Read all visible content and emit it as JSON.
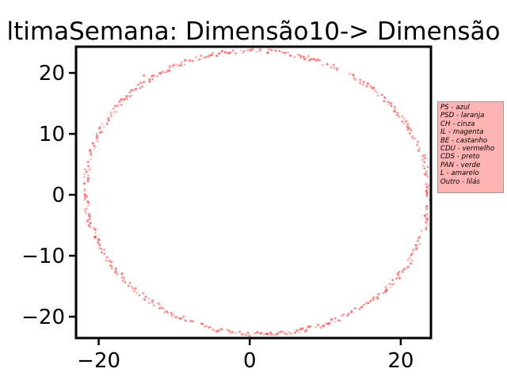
{
  "chart_data": {
    "type": "scatter",
    "title": "ltimaSemana: Dimensão10-> Dimensão",
    "xlabel": "",
    "ylabel": "",
    "xlim": [
      -23,
      24
    ],
    "ylim": [
      -23.5,
      24.3
    ],
    "xticks": [
      -20,
      0,
      20
    ],
    "yticks": [
      -20,
      -10,
      0,
      10,
      20
    ],
    "xtick_labels": [
      "−20",
      "0",
      "20"
    ],
    "ytick_labels": [
      "−20",
      "−10",
      "0",
      "10",
      "20"
    ],
    "grid": false,
    "legend_placement": "outside right",
    "legend_title": "",
    "legend_entries": [
      "PS - azul",
      "PSD - laranja",
      "CH - cinza",
      "IL - magenta",
      "BE - castanho",
      "CDU - vermelho",
      "CDS - preto",
      "PAN - verde",
      "L - amarelo",
      "Outro - lilás"
    ],
    "series": [
      {
        "color": "#ff4d4d",
        "shape": "ellipse-ring",
        "center": [
          1.0,
          0.4
        ],
        "x_radius": 22.6,
        "y_radius": 23.4,
        "rotation_deg": 25,
        "approx_point_count": 520,
        "outliers": [
          {
            "x": -14.0,
            "y": 19.6
          }
        ]
      }
    ]
  }
}
